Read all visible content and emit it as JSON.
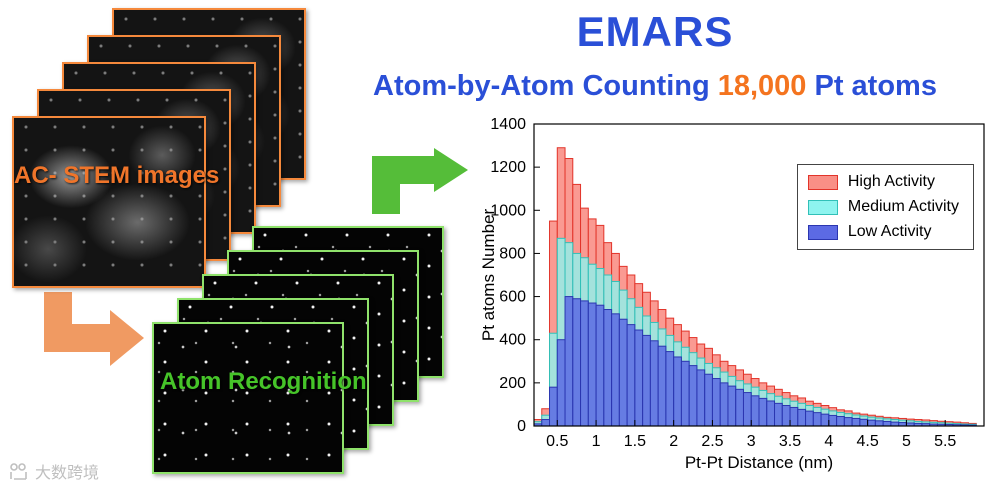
{
  "header": {
    "title": "EMARS",
    "title_color": "#2a4fd7",
    "subtitle_prefix": "Atom-by-Atom Counting ",
    "subtitle_highlight": "18,000",
    "subtitle_suffix": " Pt atoms",
    "subtitle_color": "#2a4fd7",
    "highlight_color": "#f4741f"
  },
  "workflow": {
    "stem_label": "AC- STEM images",
    "stem_label_color": "#f0752a",
    "recognition_label": "Atom Recognition",
    "recognition_label_color": "#46c429",
    "arrow_down_color": "#f09a62",
    "arrow_right_color": "#55bd39"
  },
  "watermark": {
    "text": "大数跨境"
  },
  "chart_data": {
    "type": "bar",
    "title": "",
    "xlabel": "Pt-Pt Distance (nm)",
    "ylabel": "Pt atoms Number",
    "xlim": [
      0.2,
      6.0
    ],
    "ylim": [
      0,
      1400
    ],
    "grid": false,
    "legend_position": "top-right",
    "xticks": [
      "0.5",
      "1",
      "1.5",
      "2",
      "2.5",
      "3",
      "3.5",
      "4",
      "4.5",
      "5",
      "5.5"
    ],
    "xtick_values": [
      0.5,
      1,
      1.5,
      2,
      2.5,
      3,
      3.5,
      4,
      4.5,
      5,
      5.5
    ],
    "yticks": [
      0,
      200,
      400,
      600,
      800,
      1000,
      1200,
      1400
    ],
    "bin_start": 0.2,
    "bin_width": 0.1,
    "series": [
      {
        "name": "High Activity",
        "fill": "#f98f86",
        "edge": "#e2342a",
        "opacity": 0.9,
        "values": [
          30,
          80,
          950,
          1290,
          1240,
          1120,
          1010,
          960,
          930,
          850,
          800,
          740,
          700,
          660,
          620,
          580,
          540,
          500,
          470,
          440,
          410,
          380,
          360,
          330,
          300,
          280,
          260,
          240,
          220,
          200,
          185,
          170,
          155,
          140,
          130,
          115,
          105,
          95,
          85,
          75,
          70,
          60,
          55,
          50,
          45,
          40,
          38,
          35,
          32,
          30,
          28,
          25,
          22,
          20,
          18,
          15,
          12
        ]
      },
      {
        "name": "Medium Activity",
        "fill": "#8ef4ef",
        "edge": "#31c0b8",
        "opacity": 0.8,
        "values": [
          20,
          50,
          430,
          870,
          850,
          800,
          780,
          750,
          730,
          700,
          670,
          630,
          590,
          550,
          510,
          480,
          450,
          420,
          390,
          365,
          340,
          315,
          290,
          270,
          250,
          230,
          210,
          195,
          180,
          165,
          150,
          138,
          126,
          115,
          105,
          95,
          86,
          78,
          70,
          63,
          57,
          51,
          46,
          41,
          37,
          33,
          30,
          27,
          24,
          21,
          19,
          17,
          15,
          13,
          11,
          9,
          8
        ]
      },
      {
        "name": "Low Activity",
        "fill": "#5c6ae4",
        "edge": "#2b36b0",
        "opacity": 0.85,
        "values": [
          10,
          30,
          180,
          400,
          600,
          590,
          580,
          570,
          560,
          540,
          520,
          495,
          470,
          445,
          420,
          395,
          370,
          345,
          320,
          300,
          280,
          260,
          240,
          220,
          200,
          185,
          170,
          155,
          140,
          128,
          116,
          105,
          95,
          86,
          77,
          69,
          62,
          55,
          49,
          44,
          39,
          35,
          31,
          27,
          24,
          21,
          18,
          16,
          14,
          12,
          11,
          9,
          8,
          7,
          6,
          5,
          4
        ]
      }
    ]
  }
}
